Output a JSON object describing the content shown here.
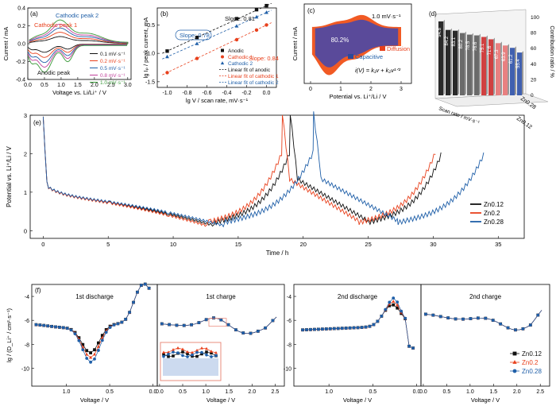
{
  "colors": {
    "black": "#111111",
    "red": "#e8401c",
    "blue": "#1f5fa8",
    "grey": "#9a9a9a",
    "purple": "#5a4a9a",
    "orange": "#f15a24"
  },
  "chart_data": [
    {
      "panel": "a",
      "type": "line",
      "xlabel": "Voltage vs. Li/Li⁺ / V",
      "ylabel": "Current / mA",
      "xlim": [
        0,
        3.1
      ],
      "ylim": [
        -0.4,
        0.4
      ],
      "xticks": [
        "0.0",
        "0.5",
        "1.0",
        "1.5",
        "2.0",
        "2.5",
        "3.0"
      ],
      "yticks": [
        "-0.4",
        "-0.2",
        "0.0",
        "0.2",
        "0.4"
      ],
      "annotations": [
        "Cathodic peak 1",
        "Cathodic peak 2",
        "Anodic peak"
      ],
      "series": [
        {
          "name": "0.1 mV·s⁻¹",
          "color": "#111111",
          "scale": 0.3
        },
        {
          "name": "0.2 mV·s⁻¹",
          "color": "#e8401c",
          "scale": 0.48
        },
        {
          "name": "0.5 mV·s⁻¹",
          "color": "#1f5fa8",
          "scale": 0.66
        },
        {
          "name": "0.8 mV·s⁻¹",
          "color": "#c0409a",
          "scale": 0.82
        },
        {
          "name": "1.0 mV·s⁻¹",
          "color": "#3a9a3a",
          "scale": 1.0
        }
      ]
    },
    {
      "panel": "b",
      "type": "scatter",
      "xlabel": "lg V / scan rate, mV·s⁻¹",
      "ylabel": "lg Iₚ / peak current, mA",
      "xlim": [
        -1.1,
        0.1
      ],
      "ylim": [
        -1.6,
        -0.2
      ],
      "xticks": [
        "-1.0",
        "-0.8",
        "-0.6",
        "-0.4",
        "-0.2",
        "0.0"
      ],
      "yticks": [
        "-1.5",
        "-1.0",
        "-0.5"
      ],
      "x": [
        -1.0,
        -0.7,
        -0.3,
        -0.1,
        0.0
      ],
      "series": [
        {
          "name": "Anodic",
          "color": "#111111",
          "marker": "square",
          "values": [
            -0.96,
            -0.72,
            -0.39,
            -0.23,
            -0.16
          ],
          "slope_label": "Slope: 0.81"
        },
        {
          "name": "Cathodic 1",
          "color": "#e8401c",
          "marker": "circle",
          "values": [
            -1.34,
            -1.09,
            -0.76,
            -0.59,
            -0.5
          ],
          "slope_label": "Slope: 0.84"
        },
        {
          "name": "Cathodic 2",
          "color": "#1f5fa8",
          "marker": "triangle",
          "values": [
            -1.06,
            -0.83,
            -0.52,
            -0.36,
            -0.28
          ],
          "slope_label": "Slope: 0.78"
        }
      ],
      "fits": [
        "Linear fit of anodic",
        "Linear fit of cathodic 1",
        "Linear fit of cathodic 2"
      ]
    },
    {
      "panel": "c",
      "type": "area",
      "xlabel": "Potential vs. Li⁺/Li / V",
      "ylabel": "Current / mA",
      "xticks": [
        "0",
        "1",
        "2",
        "3"
      ],
      "rate_label": "1.0 mV·s⁻¹",
      "capacitive_percent": "80.2%",
      "legend": [
        "Capacitive",
        "Diffusion"
      ],
      "equation": "i(V) = k₁v + k₂v¹ᐟ²"
    },
    {
      "panel": "d",
      "type": "bar",
      "ylabel": "Contribution ratio / %",
      "xlabel": "Scan rate / mV·s⁻¹",
      "zlabels": [
        "Zn0.12",
        "Zn0.28"
      ],
      "value_labels": [
        "94.8",
        "84.2",
        "83.1",
        "80.2",
        "78.5",
        "76.6",
        "75.1",
        "71.6",
        "67.3",
        "63.9",
        "61.2",
        "55.4"
      ],
      "yticks": [
        "0",
        "20",
        "40",
        "60",
        "80",
        "100"
      ]
    },
    {
      "panel": "e",
      "type": "line",
      "xlabel": "Time / h",
      "ylabel": "Potential vs. Li⁺/Li / V",
      "xlim": [
        -1,
        37
      ],
      "ylim": [
        -0.2,
        3.0
      ],
      "xticks": [
        "0",
        "5",
        "10",
        "15",
        "20",
        "25",
        "30",
        "35"
      ],
      "yticks": [
        "0",
        "1",
        "2",
        "3"
      ],
      "series": [
        {
          "name": "Zn0.12",
          "color": "#111111",
          "t1": 13.2,
          "t2": 19.0,
          "t3": 25.0,
          "t4": 30.7
        },
        {
          "name": "Zn0.2",
          "color": "#e8401c",
          "t1": 12.6,
          "t2": 18.4,
          "t3": 24.3,
          "t4": 30.2
        },
        {
          "name": "Zn0.28",
          "color": "#1f5fa8",
          "t1": 13.9,
          "t2": 20.8,
          "t3": 27.3,
          "t4": 34.0
        }
      ]
    },
    {
      "panel": "f",
      "type": "scatter",
      "ylabel": "lg / (D_Li⁺ / cm²·s⁻¹)",
      "xlabel": "Voltage / V",
      "yticks": [
        "-10",
        "-8",
        "-6",
        "-4"
      ],
      "subplots": [
        {
          "title": "1st discharge",
          "xticks": [
            "1.0",
            "0.5",
            "0.0"
          ]
        },
        {
          "title": "1st charge",
          "xticks": [
            "0.0",
            "0.5",
            "1.0",
            "1.5",
            "2.0",
            "2.5"
          ]
        },
        {
          "title": "2nd discharge",
          "xticks": [
            "1.0",
            "0.5",
            "0.0"
          ]
        },
        {
          "title": "2nd charge",
          "xticks": [
            "0.0",
            "0.5",
            "1.0",
            "1.5",
            "2.0",
            "2.5"
          ]
        }
      ],
      "series": [
        {
          "name": "Zn0.12",
          "color": "#111111",
          "marker": "square"
        },
        {
          "name": "Zn0.2",
          "color": "#e8401c",
          "marker": "triangle"
        },
        {
          "name": "Zn0.28",
          "color": "#1f5fa8",
          "marker": "circle"
        }
      ]
    }
  ]
}
